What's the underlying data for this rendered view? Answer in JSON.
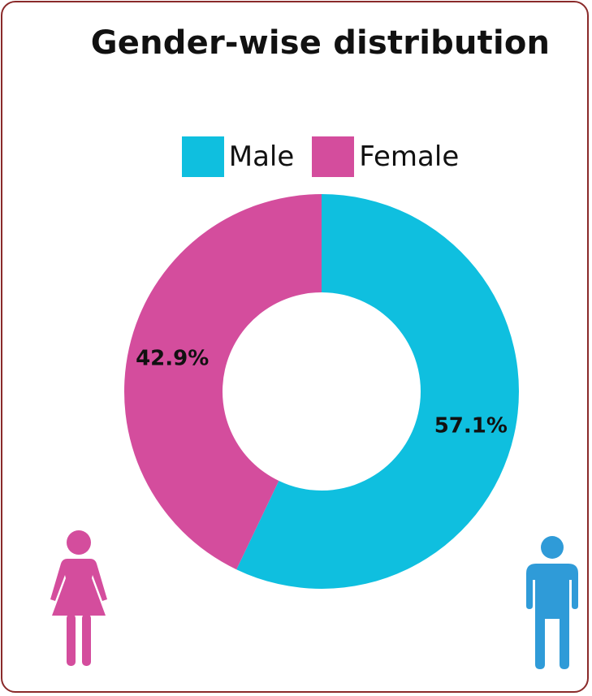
{
  "title": "Gender-wise distribution",
  "legend": [
    {
      "label": "Male",
      "color": "#0fbfdf"
    },
    {
      "label": "Female",
      "color": "#d44d9d"
    }
  ],
  "icons": {
    "female": {
      "name": "female-person-icon",
      "color": "#d44d9d"
    },
    "male": {
      "name": "male-person-icon",
      "color": "#2f9bd8"
    }
  },
  "chart_data": {
    "type": "pie",
    "title": "Gender-wise distribution",
    "donut": true,
    "categories": [
      "Male",
      "Female"
    ],
    "values": [
      57.1,
      42.9
    ],
    "unit": "%",
    "colors": [
      "#0fbfdf",
      "#d44d9d"
    ],
    "data_labels": [
      "57.1%",
      "42.9%"
    ],
    "legend_position": "top"
  }
}
